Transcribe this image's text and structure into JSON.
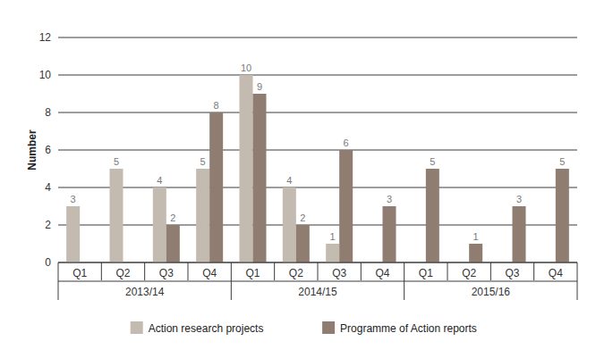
{
  "chart_data": {
    "type": "bar",
    "y_label": "Number",
    "categories": [
      "Q1",
      "Q2",
      "Q3",
      "Q4",
      "Q1",
      "Q2",
      "Q3",
      "Q4",
      "Q1",
      "Q2",
      "Q3",
      "Q4"
    ],
    "groups": [
      "2013/14",
      "2014/15",
      "2015/16"
    ],
    "series": [
      {
        "name": "Action research projects",
        "color": "#c3bab0",
        "values": [
          3,
          5,
          4,
          5,
          10,
          4,
          1,
          null,
          null,
          null,
          null,
          null
        ]
      },
      {
        "name": "Programme of Action reports",
        "color": "#8e7d70",
        "values": [
          null,
          null,
          2,
          8,
          9,
          2,
          6,
          3,
          5,
          1,
          3,
          5
        ]
      }
    ],
    "ylim": [
      0,
      12
    ],
    "yticks": [
      0,
      2,
      4,
      6,
      8,
      10,
      12
    ],
    "grid": true,
    "legend": "bottom",
    "data_labels": true
  }
}
